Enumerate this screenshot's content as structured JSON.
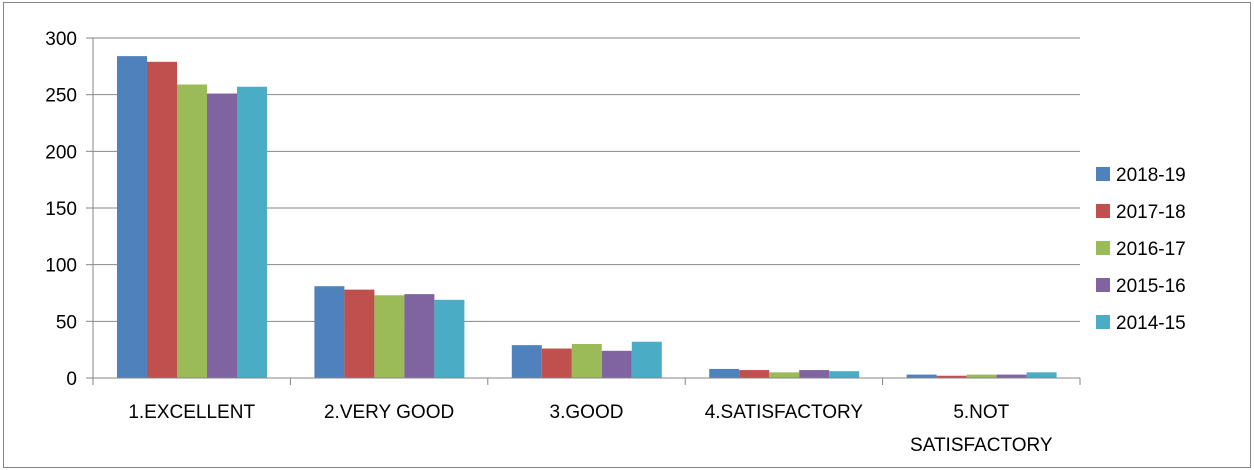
{
  "chart_data": {
    "type": "bar",
    "title": "",
    "xlabel": "",
    "ylabel": "",
    "categories": [
      "1.EXCELLENT",
      "2.VERY GOOD",
      "3.GOOD",
      "4.SATISFACTORY",
      "5.NOT SATISFACTORY"
    ],
    "category_label_lines": [
      [
        "1.EXCELLENT"
      ],
      [
        "2.VERY GOOD"
      ],
      [
        "3.GOOD"
      ],
      [
        "4.SATISFACTORY"
      ],
      [
        "5.NOT",
        "SATISFACTORY"
      ]
    ],
    "series": [
      {
        "name": "2018-19",
        "color": "#4F81BD",
        "values": [
          284,
          81,
          29,
          8,
          3
        ]
      },
      {
        "name": "2017-18",
        "color": "#C0504D",
        "values": [
          279,
          78,
          26,
          7,
          2
        ]
      },
      {
        "name": "2016-17",
        "color": "#9BBB59",
        "values": [
          259,
          73,
          30,
          5,
          3
        ]
      },
      {
        "name": "2015-16",
        "color": "#8064A2",
        "values": [
          251,
          74,
          24,
          7,
          3
        ]
      },
      {
        "name": "2014-15",
        "color": "#4BACC6",
        "values": [
          257,
          69,
          32,
          6,
          5
        ]
      }
    ],
    "ylim": [
      0,
      300
    ],
    "yticks": [
      0,
      50,
      100,
      150,
      200,
      250,
      300
    ],
    "grid": true,
    "legend_position": "right"
  }
}
